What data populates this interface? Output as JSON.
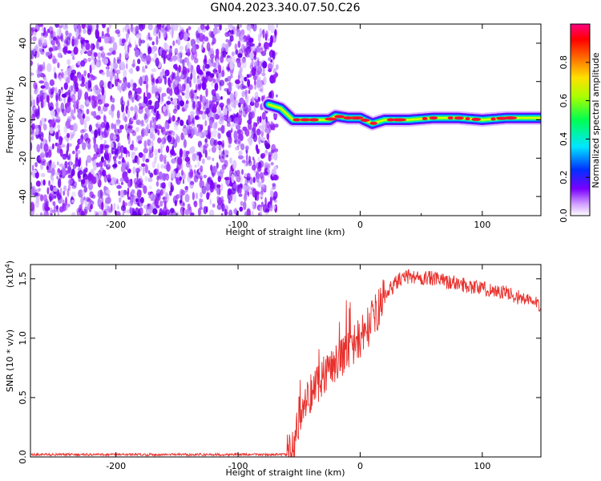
{
  "title": "GN04.2023.340.07.50.C26",
  "chart_data": [
    {
      "type": "heatmap",
      "xlabel": "Height of straight line (km)",
      "ylabel": "Frequency (Hz)",
      "xlim": [
        -270,
        148
      ],
      "ylim": [
        -50,
        50
      ],
      "xticks": [
        -200,
        -100,
        0,
        100
      ],
      "yticks": [
        -40,
        -20,
        0,
        20,
        40
      ],
      "colorbar": {
        "label": "Normalized spectral amplitude",
        "range": [
          0,
          1
        ],
        "ticks": [
          0.0,
          0.2,
          0.4,
          0.6,
          0.8
        ]
      },
      "noise_region_x": [
        -270,
        -68
      ],
      "ridge_points": [
        [
          -75,
          8
        ],
        [
          -65,
          6
        ],
        [
          -55,
          0
        ],
        [
          -40,
          0
        ],
        [
          -25,
          0
        ],
        [
          -20,
          2
        ],
        [
          -10,
          1
        ],
        [
          0,
          1
        ],
        [
          10,
          -2
        ],
        [
          20,
          0
        ],
        [
          40,
          0
        ],
        [
          60,
          1
        ],
        [
          80,
          1
        ],
        [
          100,
          0
        ],
        [
          120,
          1
        ],
        [
          148,
          1
        ]
      ]
    },
    {
      "type": "line",
      "xlabel": "Height of straight line (km)",
      "ylabel": "SNR (10 * v/v)",
      "yscale_label_base": "(x10",
      "yscale_label_exp": "4",
      "yscale_label_end": ")",
      "xlim": [
        -270,
        148
      ],
      "ylim": [
        0,
        1.62
      ],
      "xticks": [
        -200,
        -100,
        0,
        100
      ],
      "yticks": [
        0.0,
        0.5,
        1.0,
        1.5
      ],
      "color": "#e8302c",
      "envelope": [
        [
          -270,
          0.02
        ],
        [
          -60,
          0.02
        ],
        [
          -55,
          0.05
        ],
        [
          -50,
          0.35
        ],
        [
          -45,
          0.45
        ],
        [
          -40,
          0.55
        ],
        [
          -30,
          0.7
        ],
        [
          -20,
          0.8
        ],
        [
          -10,
          0.9
        ],
        [
          0,
          1.0
        ],
        [
          10,
          1.15
        ],
        [
          20,
          1.35
        ],
        [
          30,
          1.48
        ],
        [
          40,
          1.52
        ],
        [
          60,
          1.5
        ],
        [
          80,
          1.46
        ],
        [
          100,
          1.42
        ],
        [
          120,
          1.38
        ],
        [
          148,
          1.28
        ]
      ],
      "noise_amplitude": 0.08
    }
  ]
}
